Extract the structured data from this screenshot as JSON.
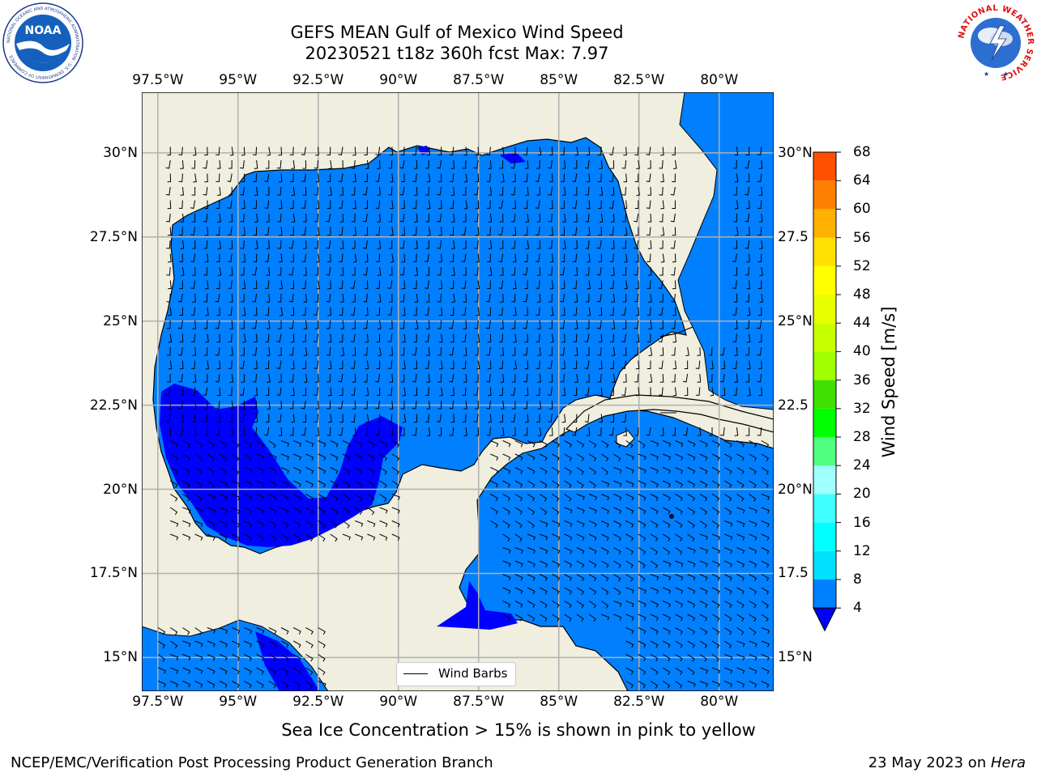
{
  "header": {
    "title_line1": "GEFS MEAN Gulf of Mexico Wind Speed",
    "title_line2": "20230521 t18z 360h fcst   Max: 7.97"
  },
  "logos": {
    "noaa_text": "NOAA",
    "noaa_ring_text": "NATIONAL OCEANIC AND ATMOSPHERIC ADMINISTRATION · U.S. DEPARTMENT OF COMMERCE",
    "nws_ring_text": "NATIONAL WEATHER SERVICE"
  },
  "map": {
    "lon_labels": [
      "97.5°W",
      "95°W",
      "92.5°W",
      "90°W",
      "87.5°W",
      "85°W",
      "82.5°W",
      "80°W"
    ],
    "lat_labels": [
      "30°N",
      "27.5°N",
      "25°N",
      "22.5°N",
      "20°N",
      "17.5°N",
      "15°N"
    ],
    "lat_labels_right": [
      "30°N",
      "27.5",
      "25°N",
      "22.5",
      "20°N",
      "17.5",
      "15°N"
    ],
    "lon_range": [
      -98,
      -78.3
    ],
    "lat_range": [
      14.0,
      31.8
    ],
    "colors": {
      "land": "#efeedf",
      "ocean_4_8": "#0080ff",
      "ocean_below_4": "#0000ff",
      "grid": "#b0b0b0"
    },
    "legend_label": "Wind Barbs"
  },
  "colorbar": {
    "label": "Wind Speed [m/s]",
    "ticks": [
      "4",
      "8",
      "12",
      "16",
      "20",
      "24",
      "28",
      "32",
      "36",
      "40",
      "44",
      "48",
      "52",
      "56",
      "60",
      "64",
      "68"
    ],
    "colors": [
      "#0080ff",
      "#00e0ff",
      "#00ffff",
      "#40ffff",
      "#a0ffff",
      "#50ff80",
      "#00ff00",
      "#40e000",
      "#a0ff00",
      "#c8ff00",
      "#e8ff00",
      "#ffff00",
      "#ffe000",
      "#ffb000",
      "#ff8000",
      "#ff5000",
      "#ff2000",
      "#ff0000"
    ],
    "under_color": "#0000ff"
  },
  "note": "Sea Ice Concentration > 15% is shown in pink to yellow",
  "footer": {
    "left": "NCEP/EMC/Verification Post Processing Product Generation Branch",
    "right_date": "23 May 2023 on ",
    "right_host": "Hera"
  }
}
